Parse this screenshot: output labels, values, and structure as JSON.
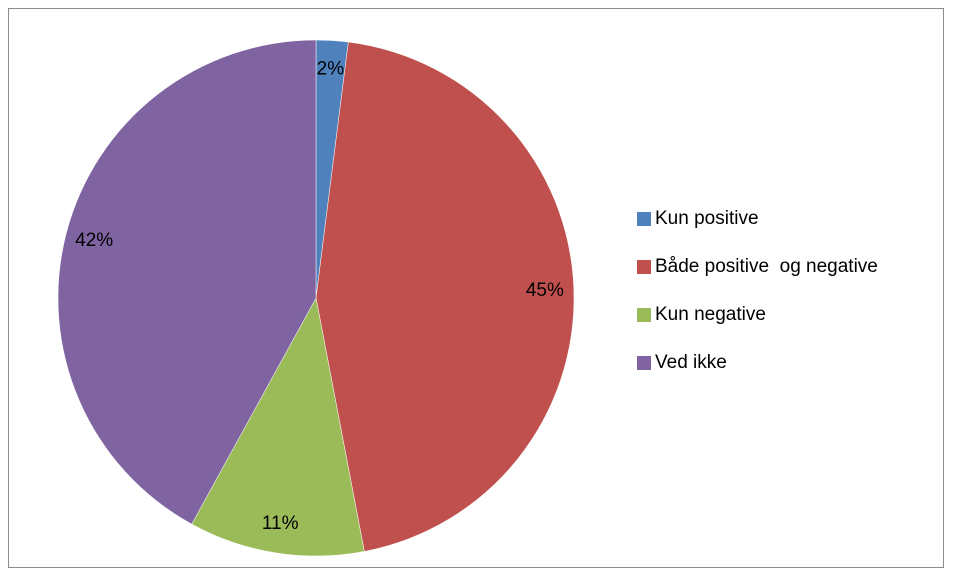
{
  "chart_data": {
    "type": "pie",
    "title": "",
    "categories": [
      "Kun positive",
      "Både positive  og negative",
      "Kun negative",
      "Ved ikke"
    ],
    "values": [
      2,
      45,
      11,
      42
    ],
    "labels": [
      "2%",
      "45%",
      "11%",
      "42%"
    ],
    "colors": [
      "#4f81bd",
      "#c0504d",
      "#9bbb59",
      "#8064a2"
    ],
    "start": "12 o'clock",
    "direction": "clockwise",
    "legend_position": "right"
  },
  "legend": {
    "items": [
      {
        "label": "Kun positive",
        "color": "#4f81bd"
      },
      {
        "label": "Både positive  og negative",
        "color": "#c0504d"
      },
      {
        "label": "Kun negative",
        "color": "#9bbb59"
      },
      {
        "label": "Ved ikke",
        "color": "#8064a2"
      }
    ]
  }
}
